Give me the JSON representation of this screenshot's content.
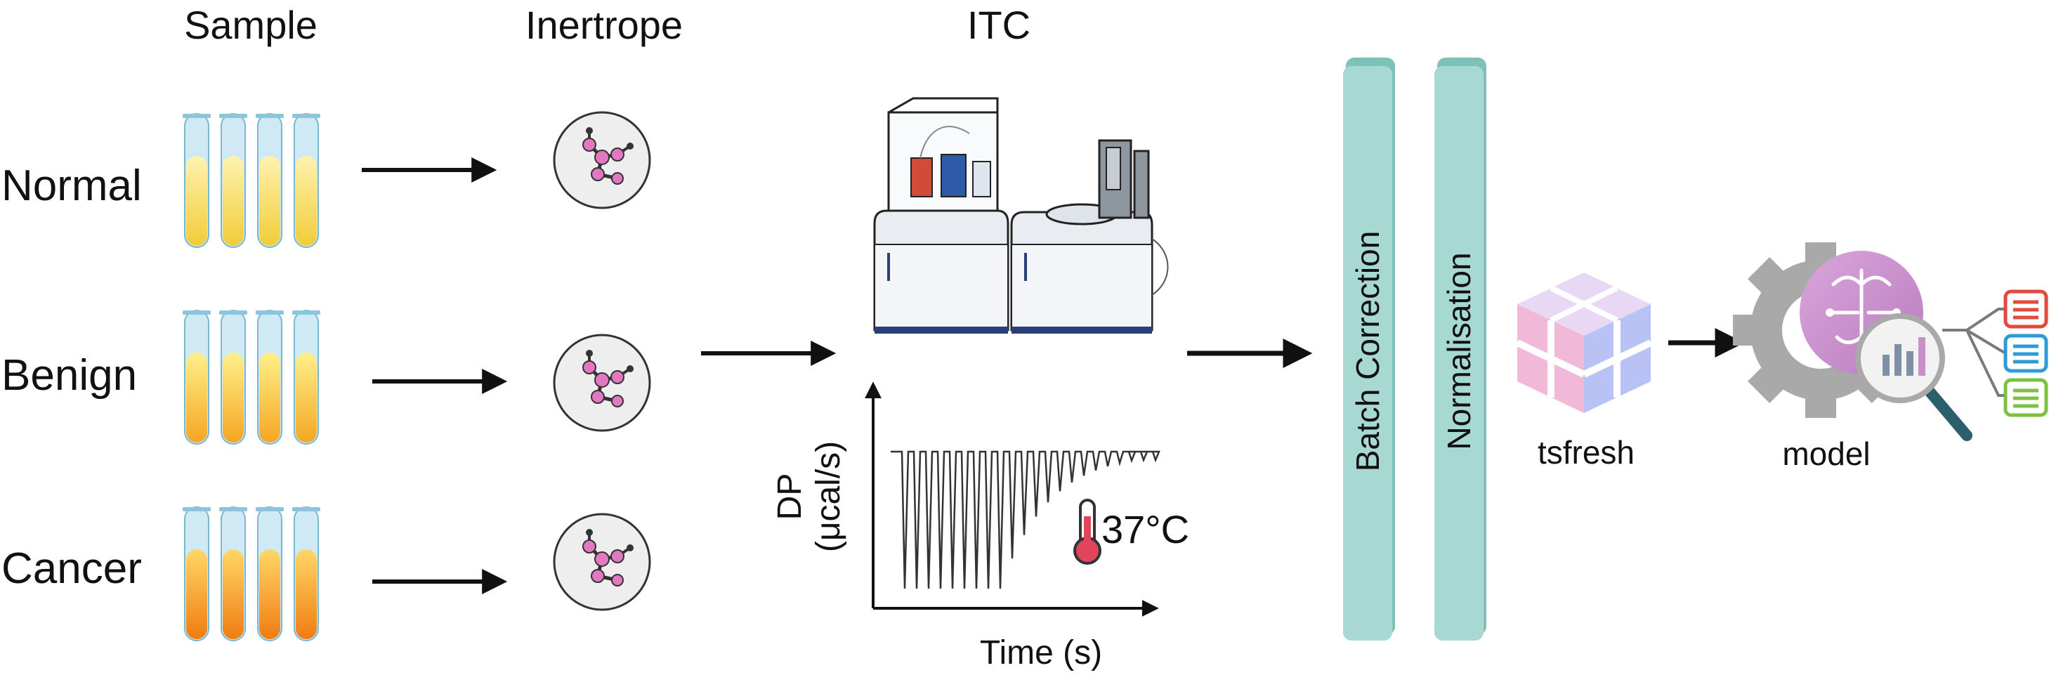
{
  "headers": {
    "sample": "Sample",
    "inertrope": "Inertrope",
    "itc": "ITC"
  },
  "groups": [
    {
      "label": "Normal",
      "tube_top": "#fff3b0",
      "tube_bottom": "#f2cc38"
    },
    {
      "label": "Benign",
      "tube_top": "#fff08a",
      "tube_bottom": "#f5a623"
    },
    {
      "label": "Cancer",
      "tube_top": "#ffd766",
      "tube_bottom": "#f07c12"
    }
  ],
  "thermogram": {
    "ylabel_line1": "DP",
    "ylabel_line2": "(μcal/s)",
    "xlabel": "Time (s)",
    "temperature": "37°C"
  },
  "processing": {
    "batch_correction": "Batch Correction",
    "normalisation": "Normalisation"
  },
  "features": {
    "label": "tsfresh"
  },
  "model": {
    "label": "model"
  },
  "colors": {
    "panel": "#a8d8d2",
    "panel_dark": "#7fc0b8",
    "tube_glass": "#cfe9f5",
    "molecule": "#e377c2",
    "cube_pink": "#f2b8d8",
    "cube_blue": "#b9c2f5",
    "brain": "#c98fc9",
    "gear": "#a9a9a9",
    "list_red": "#e24a3b",
    "list_blue": "#2f9bd6",
    "list_green": "#7cc142"
  }
}
